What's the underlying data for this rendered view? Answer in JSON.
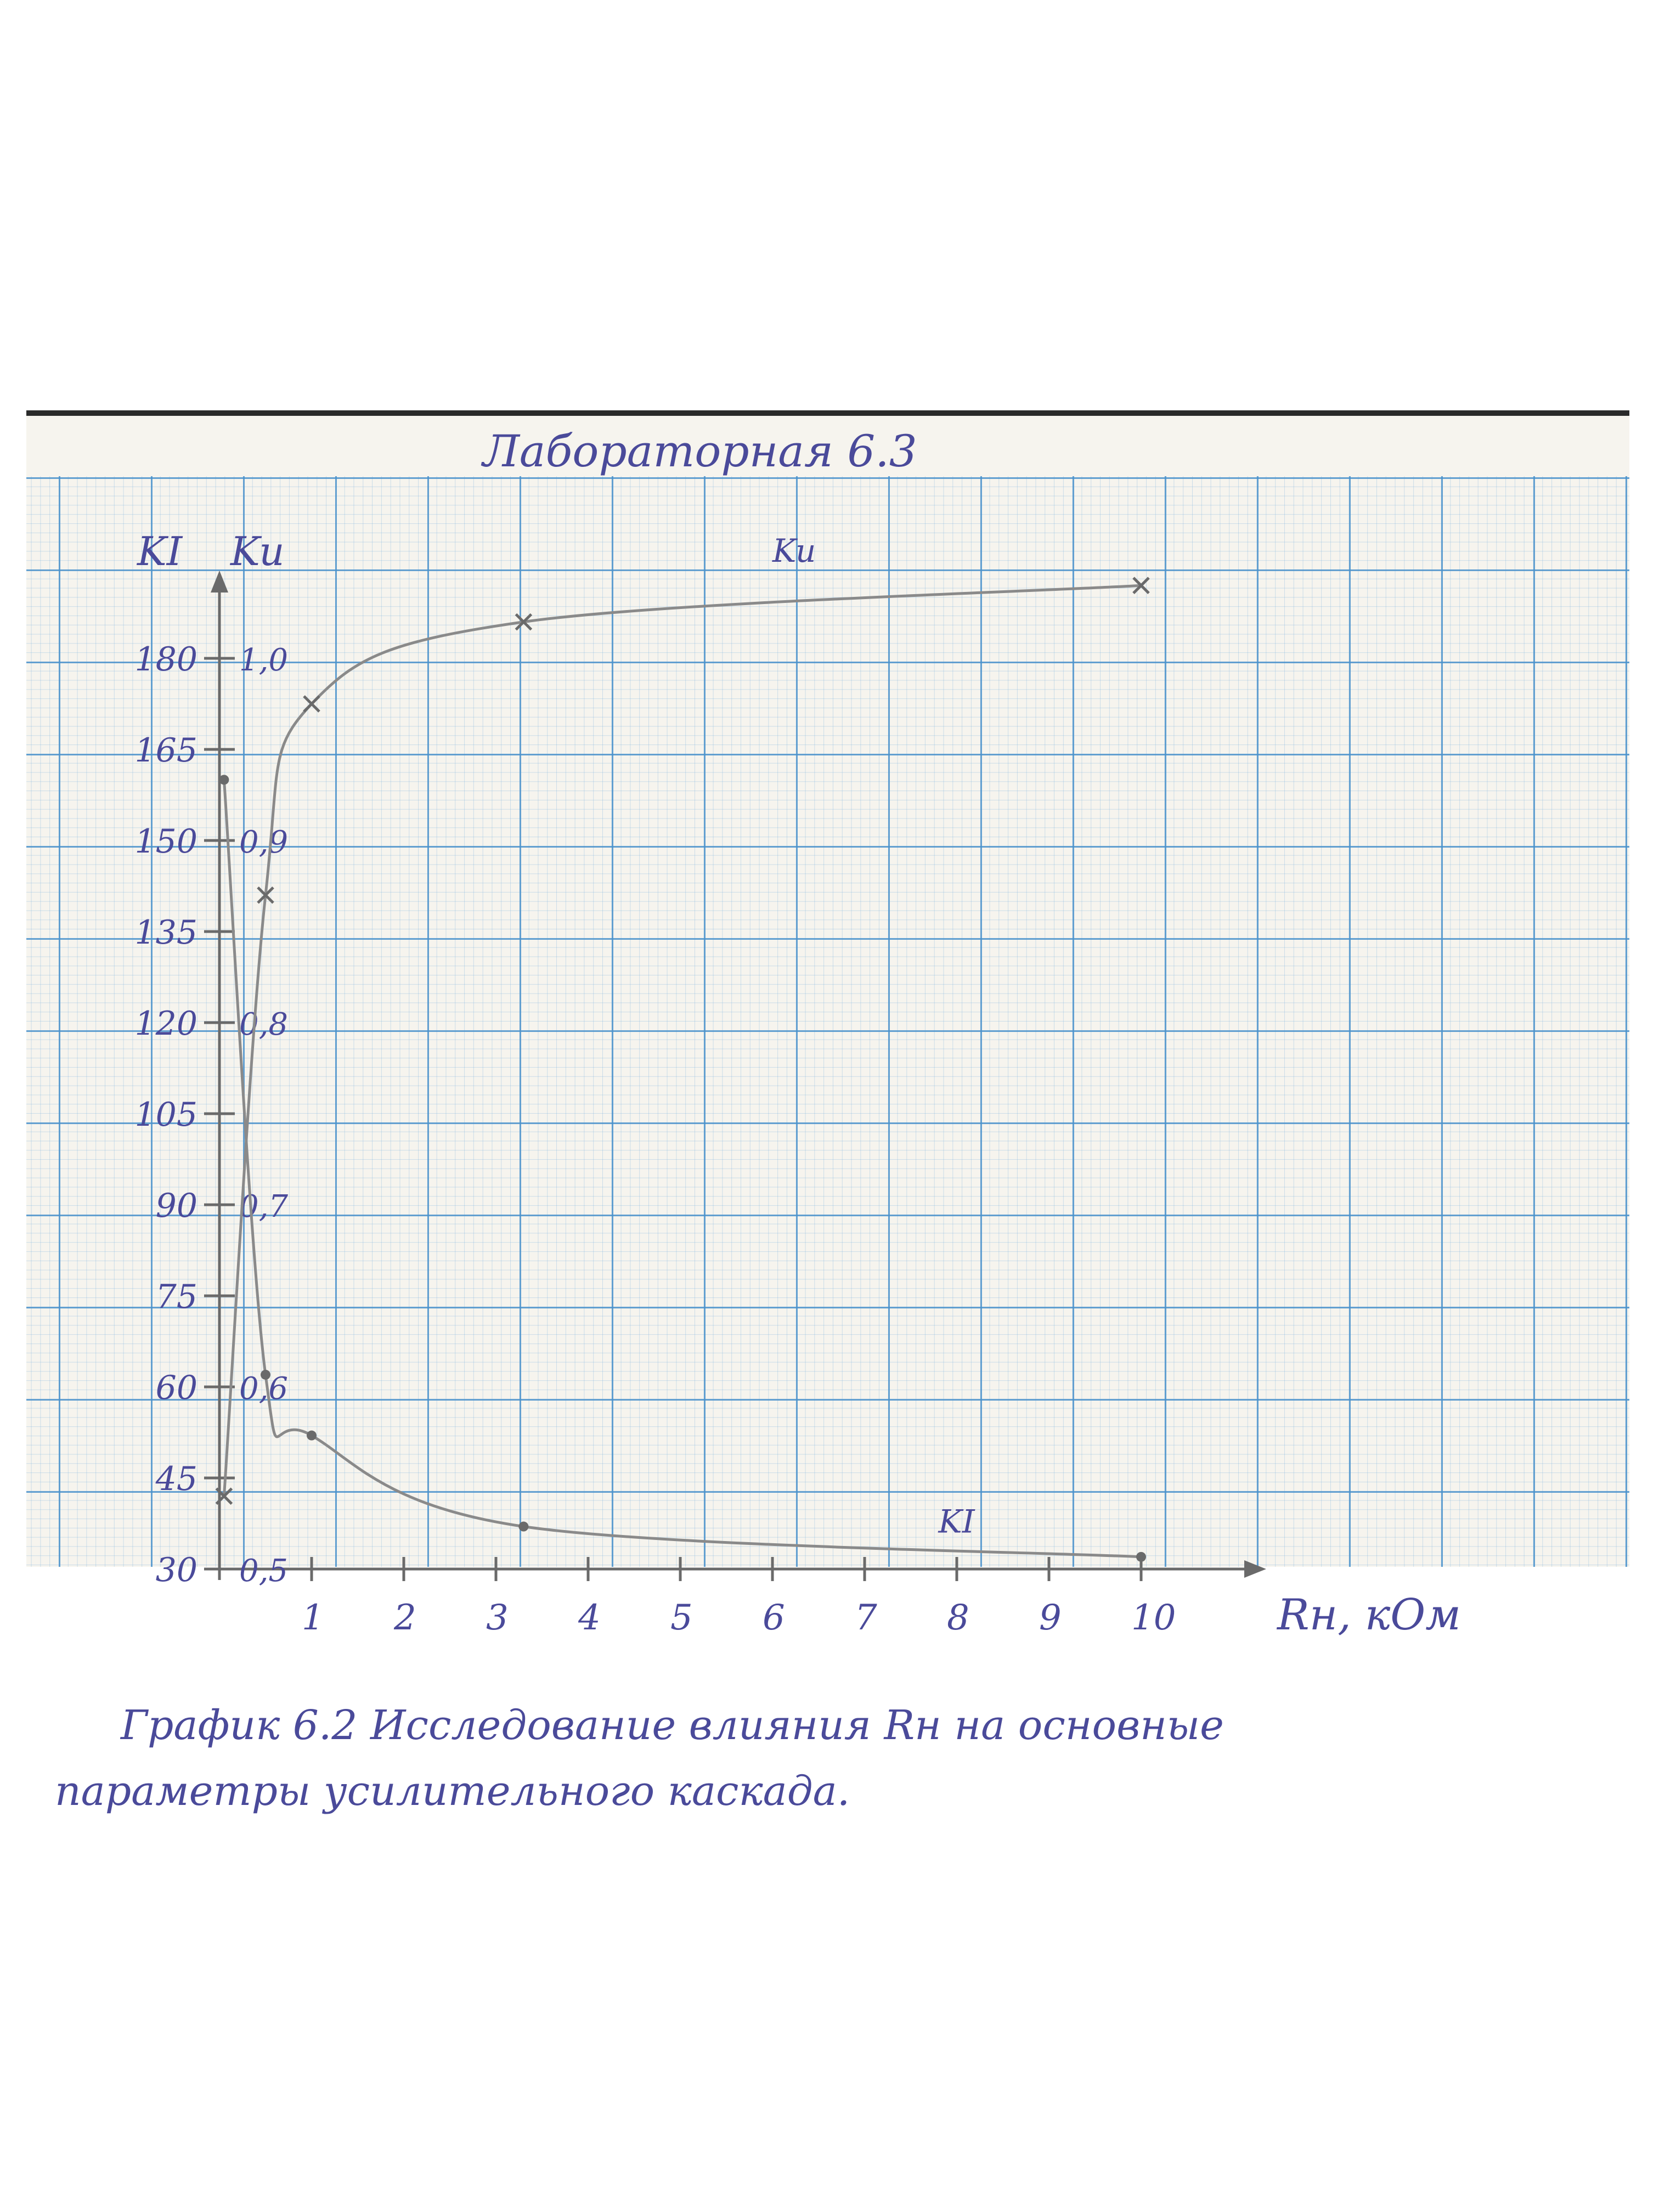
{
  "header": {
    "title": "Лабораторная 6.3"
  },
  "colors": {
    "ink": "#4a4a9a",
    "pencil": "#8a8a8a",
    "grid": "#4a92cc",
    "paper": "#f6f4ee"
  },
  "caption": {
    "line1": "График 6.2 Исследование влияния Rн на основные",
    "line2": "параметры усилительного каскада."
  },
  "chart_data": {
    "type": "line",
    "title": "",
    "xlabel": "Rн, кОм",
    "ylabel_left": "KI",
    "ylabel_right": "Ku",
    "xlim": [
      0,
      11
    ],
    "ylim_left": [
      30,
      180
    ],
    "ylim_right": [
      0.5,
      1.0
    ],
    "x_ticks": [
      "1",
      "2",
      "3",
      "4",
      "5",
      "6",
      "7",
      "8",
      "9",
      "10"
    ],
    "y_ticks_left": [
      "30",
      "45",
      "60",
      "75",
      "90",
      "105",
      "120",
      "135",
      "150",
      "165",
      "180"
    ],
    "y_ticks_right": [
      "0,5",
      "0,6",
      "0,7",
      "0,8",
      "0,9",
      "1,0"
    ],
    "series": [
      {
        "name": "Ku",
        "axis": "right",
        "x": [
          0.05,
          0.5,
          1.0,
          3.3,
          10.0
        ],
        "y": [
          0.54,
          0.87,
          0.975,
          1.02,
          1.04
        ]
      },
      {
        "name": "KI",
        "axis": "left",
        "x": [
          0.05,
          0.5,
          1.0,
          3.3,
          10.0
        ],
        "y": [
          160,
          62,
          52,
          37,
          32
        ]
      }
    ]
  }
}
